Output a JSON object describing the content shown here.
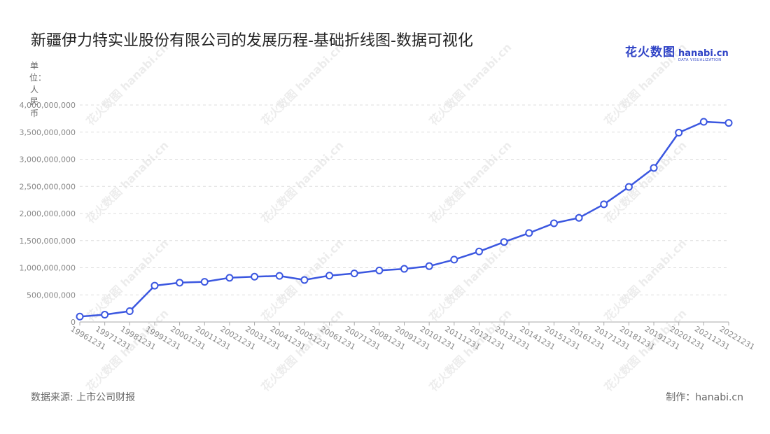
{
  "title": "新疆伊力特实业股份有限公司的发展历程-基础折线图-数据可视化",
  "logo": {
    "cn": "花火数图",
    "en": "hanabi.cn",
    "sub": "DATA VISUALIZATION"
  },
  "source": "数据来源: 上市公司财报",
  "credit": "制作：hanabi.cn",
  "watermark": "花火数图 hanabi.cn",
  "colors": {
    "line": "#3b57e0",
    "point_fill": "#ffffff",
    "grid": "#dddddd",
    "axis": "#aaaaaa"
  },
  "chart_data": {
    "type": "line",
    "ylabel": "单位：人民币",
    "ylim": [
      0,
      4000000000
    ],
    "yticks": [
      0,
      500000000,
      1000000000,
      1500000000,
      2000000000,
      2500000000,
      3000000000,
      3500000000,
      4000000000
    ],
    "grid": true,
    "x": [
      "19961231",
      "19971231",
      "19981231",
      "19991231",
      "20001231",
      "20011231",
      "20021231",
      "20031231",
      "20041231",
      "20051231",
      "20061231",
      "20071231",
      "20081231",
      "20091231",
      "20101231",
      "20111231",
      "20121231",
      "20131231",
      "20141231",
      "20151231",
      "20161231",
      "20171231",
      "20181231",
      "20191231",
      "20201231",
      "20211231",
      "20221231"
    ],
    "series": [
      {
        "values": [
          100000000,
          135000000,
          200000000,
          670000000,
          725000000,
          740000000,
          815000000,
          835000000,
          850000000,
          775000000,
          855000000,
          895000000,
          950000000,
          980000000,
          1030000000,
          1150000000,
          1300000000,
          1475000000,
          1640000000,
          1820000000,
          1920000000,
          2170000000,
          2490000000,
          2840000000,
          3490000000,
          3690000000,
          3670000000
        ]
      }
    ]
  }
}
